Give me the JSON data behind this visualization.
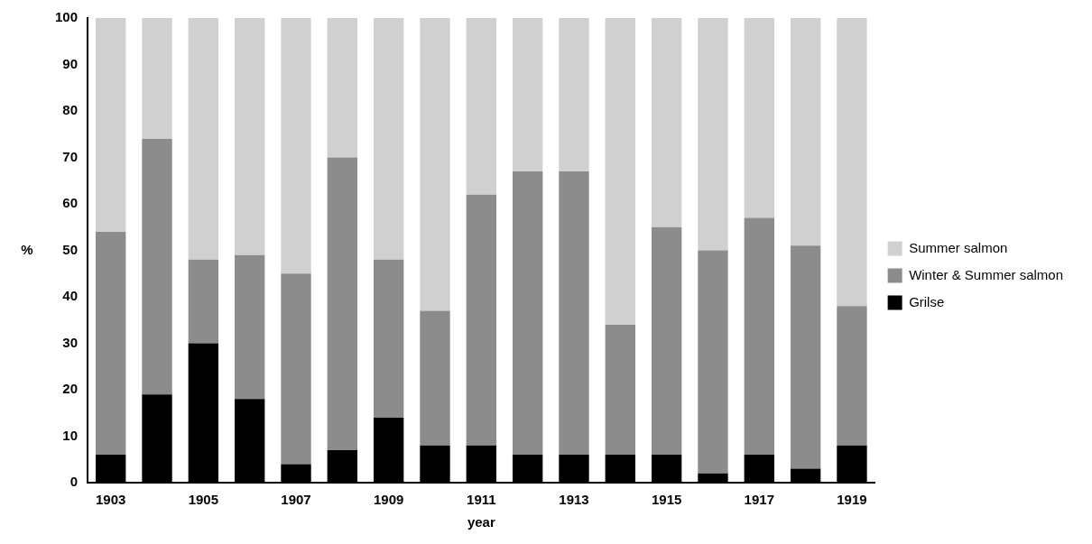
{
  "chart_data": {
    "type": "bar",
    "stacked": true,
    "xlabel": "year",
    "ylabel": "%",
    "categories": [
      "1903",
      null,
      "1905",
      null,
      "1907",
      null,
      "1909",
      null,
      "1911",
      null,
      "1913",
      null,
      "1915",
      null,
      "1917",
      null,
      "1919"
    ],
    "series": [
      {
        "name": "Grilse",
        "color": "#000000",
        "values": [
          6,
          19,
          30,
          18,
          4,
          7,
          14,
          8,
          8,
          6,
          6,
          6,
          6,
          2,
          6,
          3,
          8
        ]
      },
      {
        "name": "Winter & Summer salmon",
        "color": "#8c8c8c",
        "values": [
          48,
          55,
          18,
          31,
          41,
          63,
          34,
          29,
          54,
          61,
          61,
          28,
          49,
          48,
          51,
          48,
          30
        ]
      },
      {
        "name": "Summer salmon",
        "color": "#d0d0d0",
        "values": [
          46,
          26,
          52,
          51,
          55,
          30,
          52,
          63,
          38,
          33,
          33,
          66,
          45,
          50,
          43,
          49,
          62
        ]
      }
    ],
    "ylim": [
      0,
      100
    ],
    "yticks": [
      0,
      10,
      20,
      30,
      40,
      50,
      60,
      70,
      80,
      90,
      100
    ],
    "grid": false,
    "legend": "right"
  }
}
